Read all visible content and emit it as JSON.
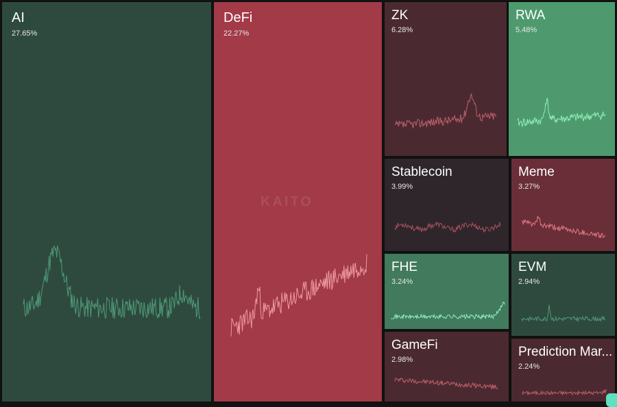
{
  "watermark": "KAITO",
  "tiles": [
    {
      "id": "ai",
      "name": "AI",
      "share": "27.65%",
      "bg": "#2e4a3e",
      "line": "#4f9a78",
      "trend": "peak-early"
    },
    {
      "id": "defi",
      "name": "DeFi",
      "share": "22.27%",
      "bg": "#a23a48",
      "line": "#f09aa0",
      "trend": "rising"
    },
    {
      "id": "zk",
      "name": "ZK",
      "share": "6.28%",
      "bg": "#4a2a30",
      "line": "#c0606c",
      "trend": "peak-late"
    },
    {
      "id": "rwa",
      "name": "RWA",
      "share": "5.48%",
      "bg": "#4e9a6e",
      "line": "#8ff0b8",
      "trend": "spiky-flat"
    },
    {
      "id": "stablecoin",
      "name": "Stablecoin",
      "share": "3.99%",
      "bg": "#2e262a",
      "line": "#a8505c",
      "trend": "noisy"
    },
    {
      "id": "meme",
      "name": "Meme",
      "share": "3.27%",
      "bg": "#6a2e38",
      "line": "#e07a86",
      "trend": "declining"
    },
    {
      "id": "fhe",
      "name": "FHE",
      "share": "3.24%",
      "bg": "#417a5c",
      "line": "#8ef0c0",
      "trend": "flat-end-rise"
    },
    {
      "id": "evm",
      "name": "EVM",
      "share": "2.94%",
      "bg": "#2e4a3e",
      "line": "#4f9a78",
      "trend": "flat-spike"
    },
    {
      "id": "gamefi",
      "name": "GameFi",
      "share": "2.98%",
      "bg": "#4a2a30",
      "line": "#c0606c",
      "trend": "slow-decline"
    },
    {
      "id": "prediction",
      "name": "Prediction Mar...",
      "share": "2.24%",
      "bg": "#4a2a30",
      "line": "#c0606c",
      "trend": "flat-low"
    }
  ]
}
